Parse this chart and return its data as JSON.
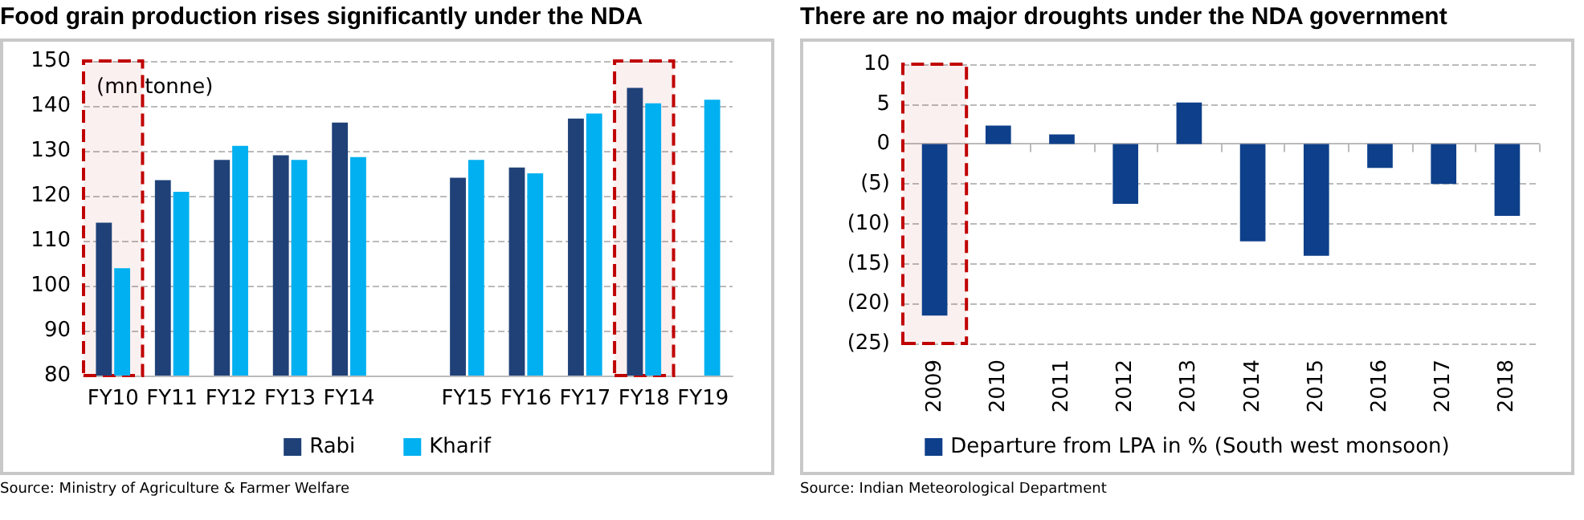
{
  "chart_data": [
    {
      "type": "bar",
      "title": "Food grain production rises significantly under the NDA",
      "ylabel": "(mn tonne)",
      "categories": [
        "FY10",
        "FY11",
        "FY12",
        "FY13",
        "FY14",
        null,
        "FY15",
        "FY16",
        "FY17",
        "FY18",
        "FY19"
      ],
      "series": [
        {
          "name": "Rabi",
          "color": "#1f4178",
          "values": [
            114,
            123.5,
            128,
            129,
            136.3,
            null,
            124,
            126.3,
            137.2,
            144,
            null
          ]
        },
        {
          "name": "Kharif",
          "color": "#00b0f0",
          "values": [
            103.9,
            120.9,
            131.1,
            128,
            128.6,
            null,
            128,
            125,
            138.3,
            140.6,
            141.4
          ]
        }
      ],
      "ylim": [
        80,
        150
      ],
      "yticks": [
        80,
        90,
        100,
        110,
        120,
        130,
        140,
        150
      ],
      "grid": "y",
      "legend": "bottom",
      "bands": [
        {
          "axis": "x",
          "from": "FY10",
          "to": "FY10",
          "color": "#c00000"
        },
        {
          "axis": "x",
          "from": "FY18",
          "to": "FY18",
          "color": "#c00000"
        }
      ],
      "annotations": [
        "Source: Ministry of Agriculture & Farmer Welfare"
      ]
    },
    {
      "type": "bar",
      "title": "There are no major droughts under the NDA government",
      "categories": [
        "2009",
        "2010",
        "2011",
        "2012",
        "2013",
        "2014",
        "2015",
        "2016",
        "2017",
        "2018"
      ],
      "series": [
        {
          "name": "Departure from LPA in % (South west monsoon)",
          "color": "#0e3f8a",
          "values": [
            -21.5,
            2.3,
            1.2,
            -7.5,
            5.2,
            -12.2,
            -14,
            -3,
            -5,
            -9
          ]
        }
      ],
      "ylim": [
        -25,
        10
      ],
      "yticks": [
        {
          "value": -25,
          "label": "(25)"
        },
        {
          "value": -20,
          "label": "(20)"
        },
        {
          "value": -15,
          "label": "(15)"
        },
        {
          "value": -10,
          "label": "(10)"
        },
        {
          "value": -5,
          "label": "(5)"
        },
        0,
        5,
        10
      ],
      "grid": "y",
      "legend": "bottom",
      "bands": [
        {
          "axis": "x",
          "from": "2009",
          "to": "2009",
          "color": "#c00000"
        }
      ],
      "annotations": [
        "Source: Indian Meteorological Department"
      ]
    }
  ]
}
